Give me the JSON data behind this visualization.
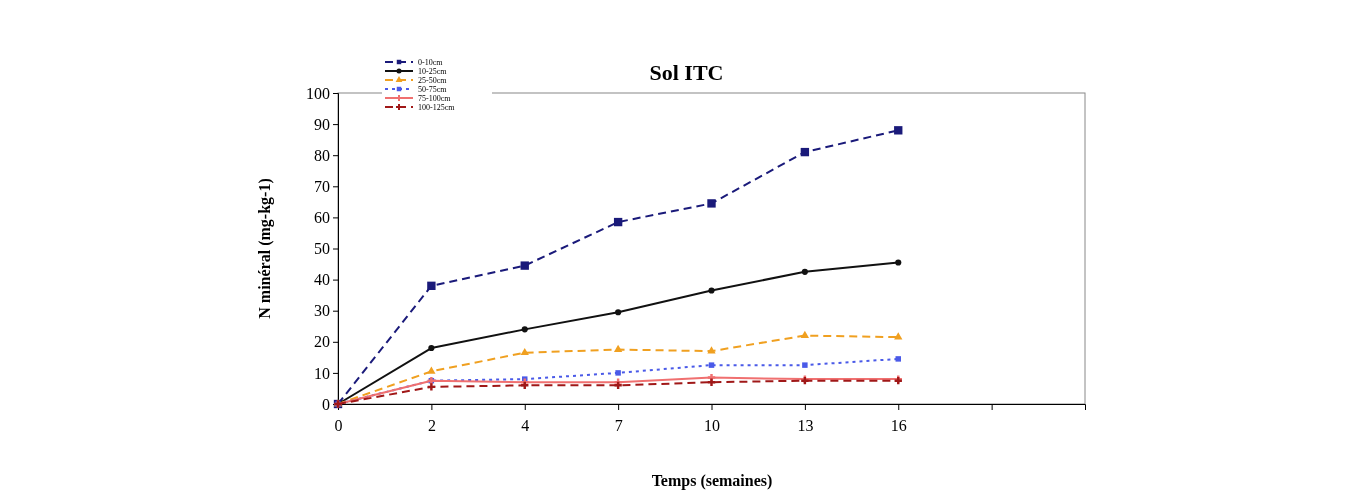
{
  "chart_data": {
    "type": "line",
    "title": "Sol ITC",
    "xlabel": "Temps (semaines)",
    "ylabel": "N minéral (mg-kg-1)",
    "categories": [
      "0",
      "2",
      "4",
      "7",
      "10",
      "13",
      "16",
      null
    ],
    "ylim": [
      0,
      100
    ],
    "yticks": [
      0,
      10,
      20,
      30,
      40,
      50,
      60,
      70,
      80,
      90,
      100
    ],
    "grid": false,
    "legend": "top left",
    "series": [
      {
        "name": "0-10cm",
        "color": "#1a1a7a",
        "marker": "square",
        "line_style": "dashed",
        "values": [
          0,
          38,
          44.5,
          58.5,
          64.5,
          81,
          88,
          null
        ]
      },
      {
        "name": "10-25cm",
        "color": "#111111",
        "marker": "circle",
        "line_style": "solid",
        "values": [
          0,
          18,
          24,
          29.5,
          36.5,
          42.5,
          45.5,
          null
        ]
      },
      {
        "name": "25-50cm",
        "color": "#f0a020",
        "marker": "triangle",
        "line_style": "dashed",
        "values": [
          0,
          10.5,
          16.5,
          17.5,
          17,
          22,
          21.5,
          null
        ]
      },
      {
        "name": "50-75cm",
        "color": "#4a5ae8",
        "marker": "square",
        "line_style": "dotted",
        "values": [
          0,
          7.5,
          8,
          10,
          12.5,
          12.5,
          14.5,
          null
        ]
      },
      {
        "name": "75-100cm",
        "color": "#f07070",
        "marker": "cross",
        "line_style": "solid",
        "values": [
          0,
          7.5,
          7,
          7,
          8.5,
          8,
          8,
          null
        ]
      },
      {
        "name": "100-125cm",
        "color": "#a01818",
        "marker": "cross",
        "line_style": "dashed",
        "values": [
          0,
          5.5,
          6,
          6,
          7,
          7.5,
          7.5,
          null
        ]
      }
    ]
  }
}
